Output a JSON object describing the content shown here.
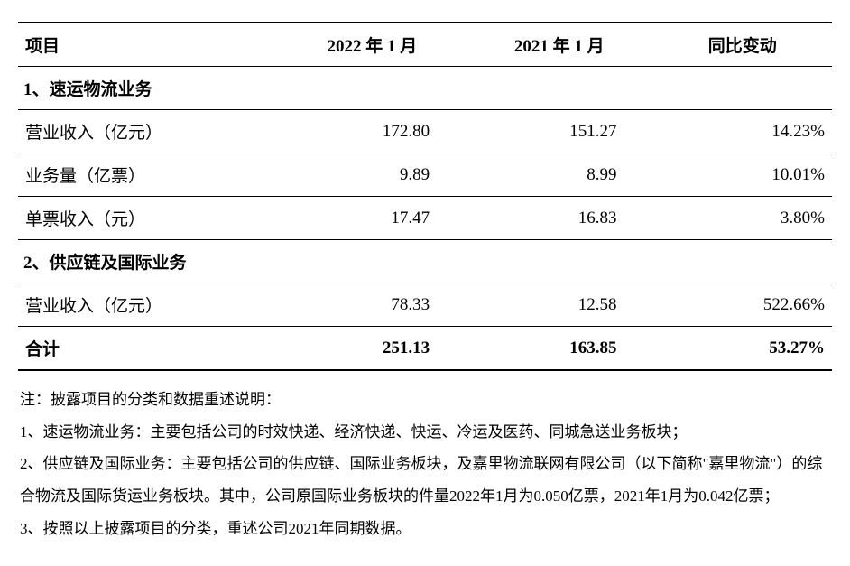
{
  "table": {
    "headers": {
      "item": "项目",
      "col1": "2022 年 1 月",
      "col2": "2021 年 1 月",
      "col3": "同比变动"
    },
    "section1": {
      "title": "1、速运物流业务",
      "rows": [
        {
          "label": "营业收入（亿元）",
          "v1": "172.80",
          "v2": "151.27",
          "v3": "14.23%"
        },
        {
          "label": "业务量（亿票）",
          "v1": "9.89",
          "v2": "8.99",
          "v3": "10.01%"
        },
        {
          "label": "单票收入（元）",
          "v1": "17.47",
          "v2": "16.83",
          "v3": "3.80%"
        }
      ]
    },
    "section2": {
      "title": "2、供应链及国际业务",
      "rows": [
        {
          "label": "营业收入（亿元）",
          "v1": "78.33",
          "v2": "12.58",
          "v3": "522.66%"
        }
      ]
    },
    "total": {
      "label": "合计",
      "v1": "251.13",
      "v2": "163.85",
      "v3": "53.27%"
    }
  },
  "notes": {
    "intro": "注：披露项目的分类和数据重述说明：",
    "n1": "1、速运物流业务：主要包括公司的时效快递、经济快递、快运、冷运及医药、同城急送业务板块；",
    "n2": "2、供应链及国际业务：主要包括公司的供应链、国际业务板块，及嘉里物流联网有限公司（以下简称\"嘉里物流\"）的综合物流及国际货运业务板块。其中，公司原国际业务板块的件量2022年1月为0.050亿票，2021年1月为0.042亿票；",
    "n3": "3、按照以上披露项目的分类，重述公司2021年同期数据。"
  }
}
